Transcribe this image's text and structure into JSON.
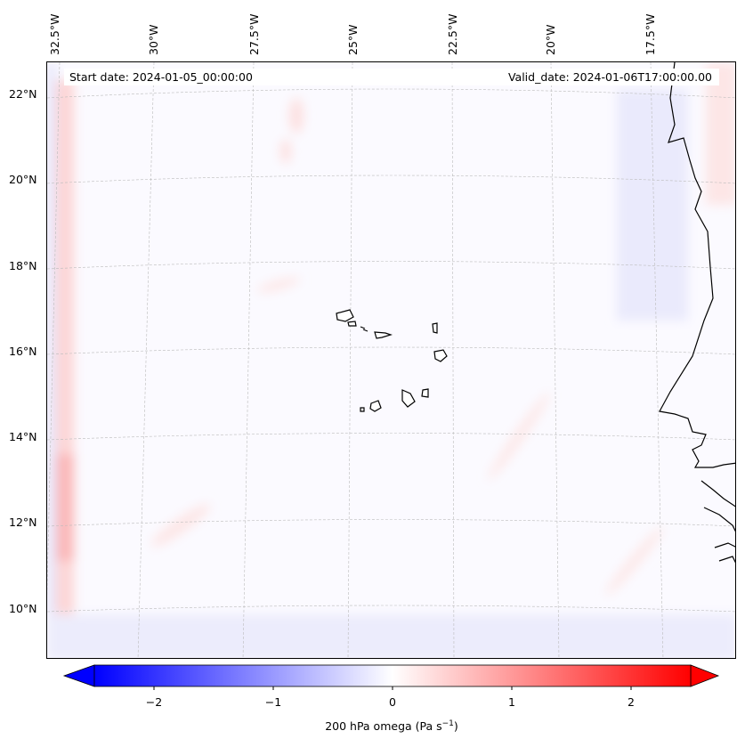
{
  "lon_labels": [
    "32.5°W",
    "30°W",
    "27.5°W",
    "25°W",
    "22.5°W",
    "20°W",
    "17.5°W"
  ],
  "lat_labels": [
    "22°N",
    "20°N",
    "18°N",
    "16°N",
    "14°N",
    "12°N",
    "10°N"
  ],
  "start_date": "Start date: 2024-01-05_00:00:00",
  "valid_date": "Valid_date: 2024-01-06T17:00:00.00",
  "colorbar": {
    "ticks": [
      "−2",
      "−1",
      "0",
      "1",
      "2"
    ],
    "tick_values": [
      -2,
      -1,
      0,
      1,
      2
    ],
    "range": [
      -2.5,
      2.5
    ],
    "label": "200 hPa omega (Pa s",
    "label_exp": "−1",
    "label_end": ")",
    "colors": {
      "min": "#0000ff",
      "mid": "#ffffff",
      "max": "#ff0000"
    }
  }
}
